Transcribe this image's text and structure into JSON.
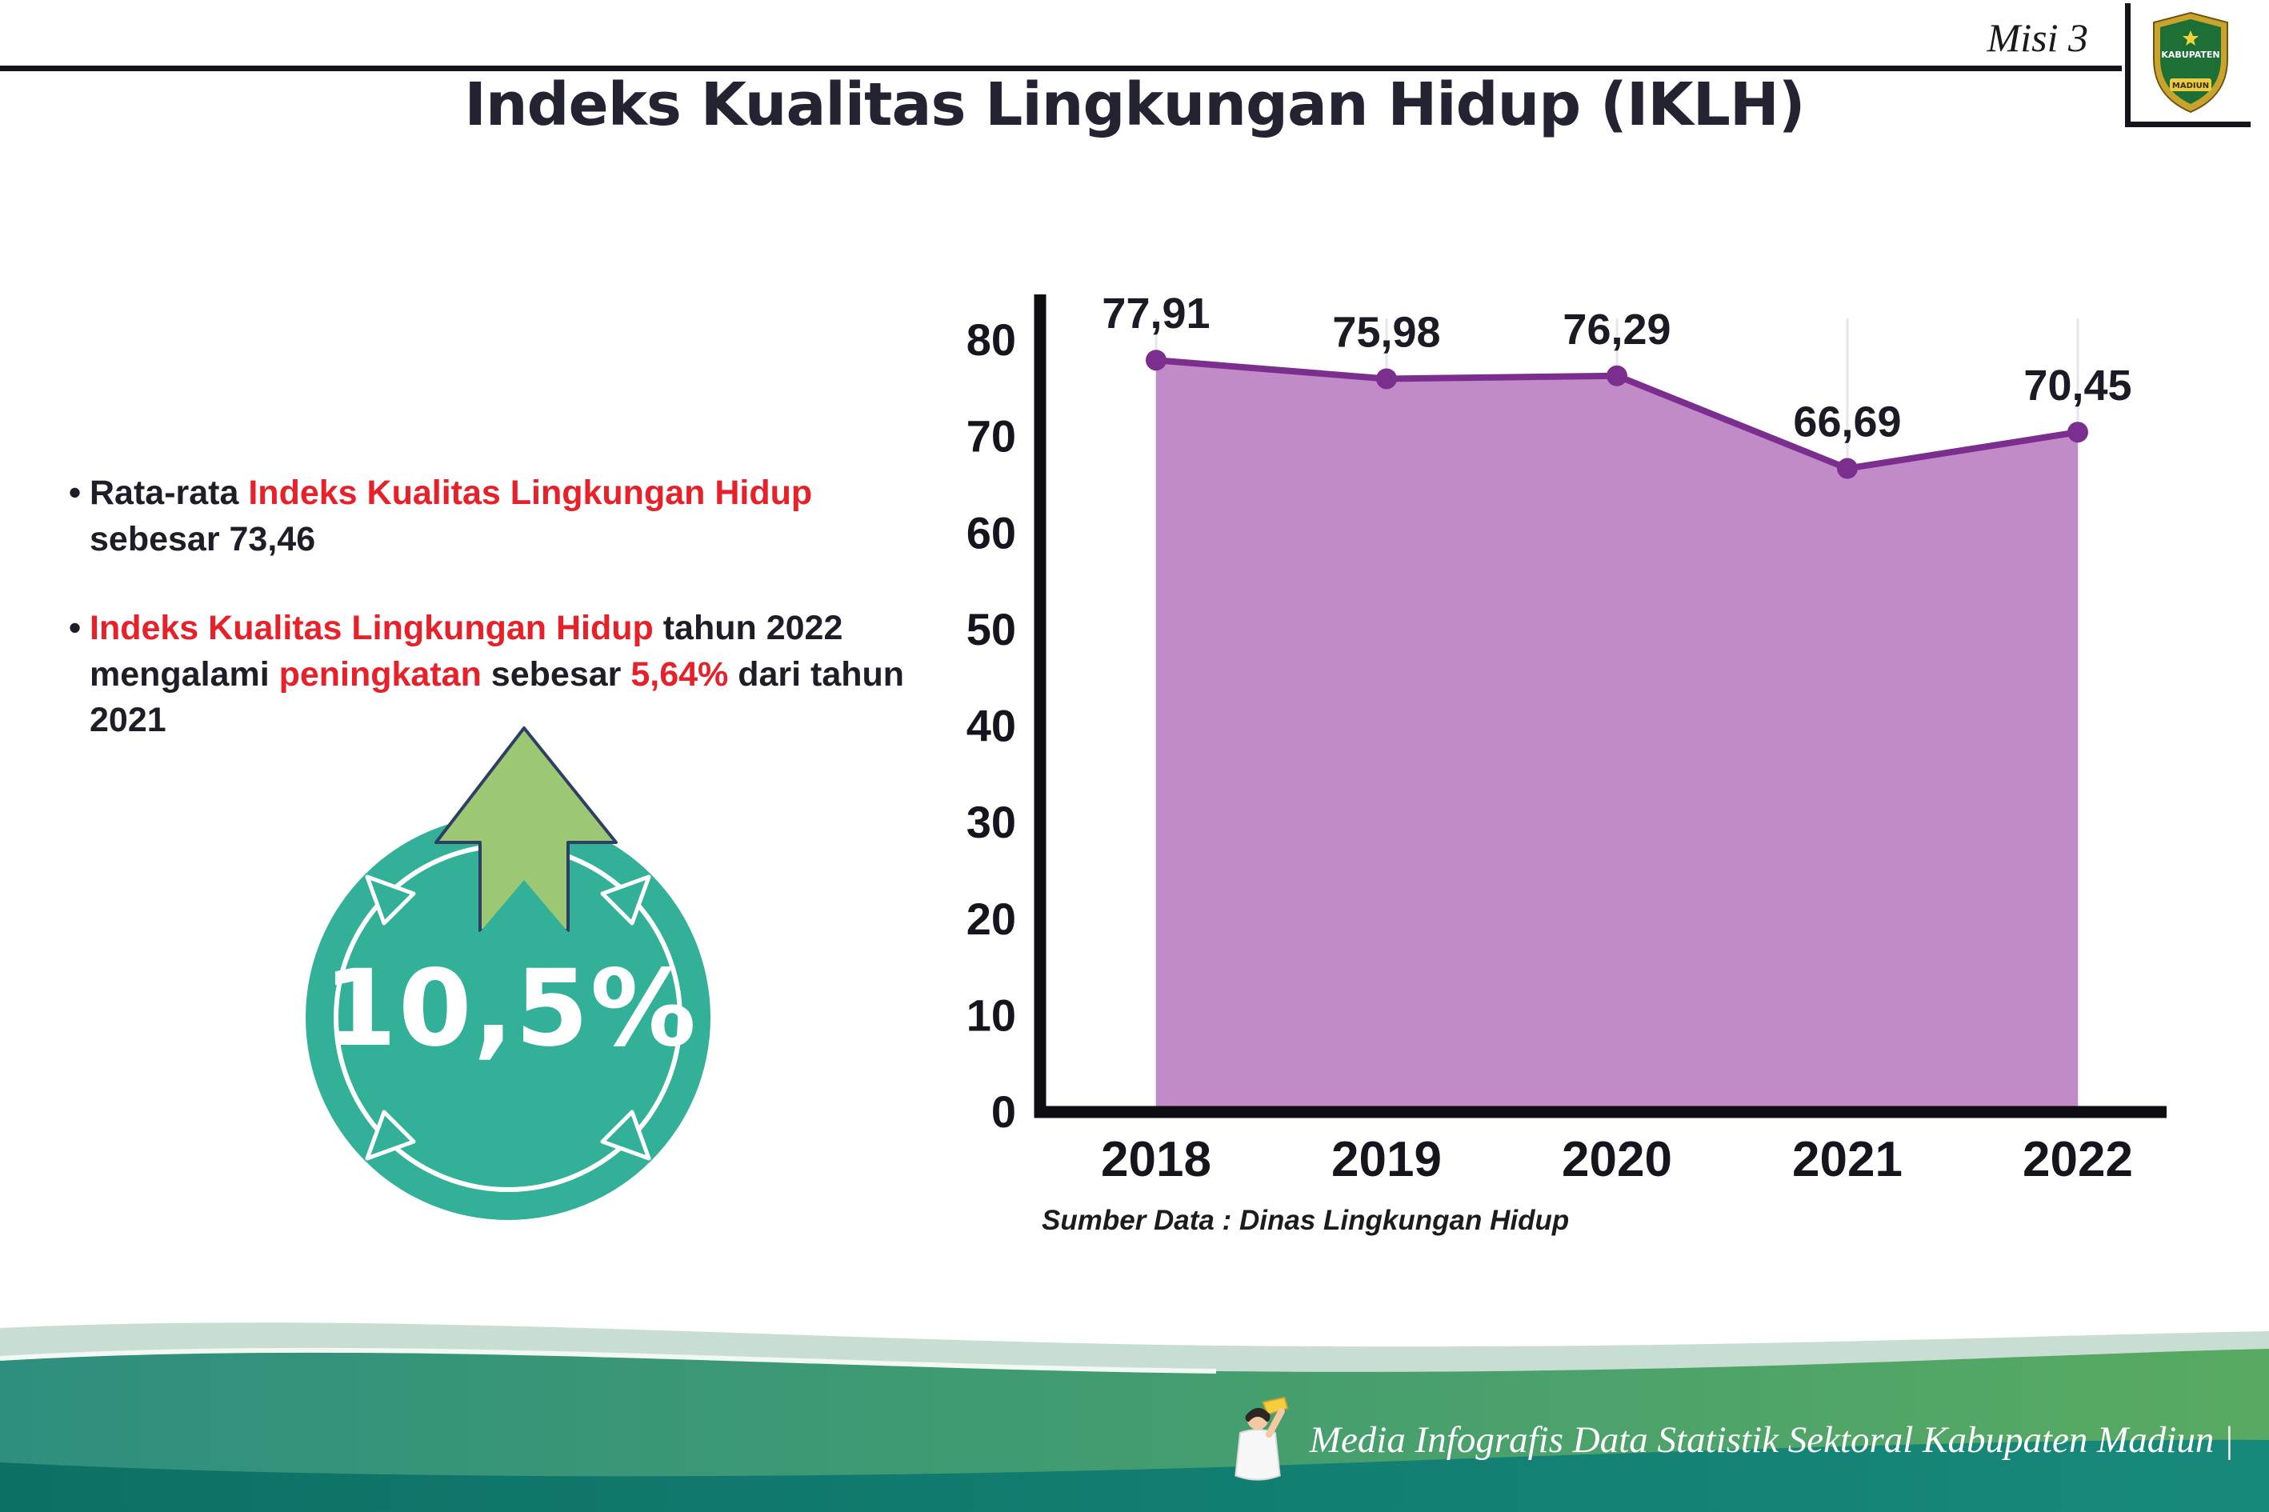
{
  "header": {
    "mission_label": "Misi 3",
    "title": "Indeks Kualitas Lingkungan Hidup (IKLH)"
  },
  "logo": {
    "top_text": "KABUPATEN",
    "bottom_text": "MADIUN"
  },
  "bullets": {
    "marker": "•",
    "bullet1_segments": [
      {
        "text": "Rata-rata ",
        "red": false
      },
      {
        "text": "Indeks Kualitas Lingkungan Hidup",
        "red": true
      },
      {
        "text": " sebesar 73,46",
        "red": false
      }
    ],
    "bullet2_segments": [
      {
        "text": "Indeks Kualitas Lingkungan Hidup",
        "red": true
      },
      {
        "text": " tahun 2022 mengalami ",
        "red": false
      },
      {
        "text": "peningkatan",
        "red": true
      },
      {
        "text": " sebesar ",
        "red": false
      },
      {
        "text": "5,64%",
        "red": true
      },
      {
        "text": " dari tahun 2021",
        "red": false
      }
    ]
  },
  "badge": {
    "value": "10,5%"
  },
  "chart_data": {
    "type": "area",
    "title": "Indeks Kualitas Lingkungan Hidup (IKLH)",
    "categories": [
      "2018",
      "2019",
      "2020",
      "2021",
      "2022"
    ],
    "values": [
      77.91,
      75.98,
      76.29,
      66.69,
      70.45
    ],
    "value_labels": [
      "77,91",
      "75,98",
      "76,29",
      "66,69",
      "70,45"
    ],
    "xlabel": "",
    "ylabel": "",
    "ylim": [
      0,
      80
    ],
    "ytick_interval": 10,
    "grid": "light vertical gridlines per year",
    "legend": "none",
    "fill_color": "#c18bc7",
    "line_color": "#7c2e8e",
    "marker_color": "#7c2e8e",
    "source": "Sumber Data : Dinas Lingkungan Hidup"
  },
  "footer": {
    "caption": "Media Infografis Data Statistik Sektoral Kabupaten Madiun |"
  },
  "colors": {
    "accent_red": "#e6212a",
    "badge_teal": "#33b098",
    "arrow_green": "#9dc873",
    "footer_green": "#58aa62",
    "footer_teal": "#2e8f7e",
    "footer_dark": "#0d7065",
    "axis_black": "#0d0d12"
  }
}
